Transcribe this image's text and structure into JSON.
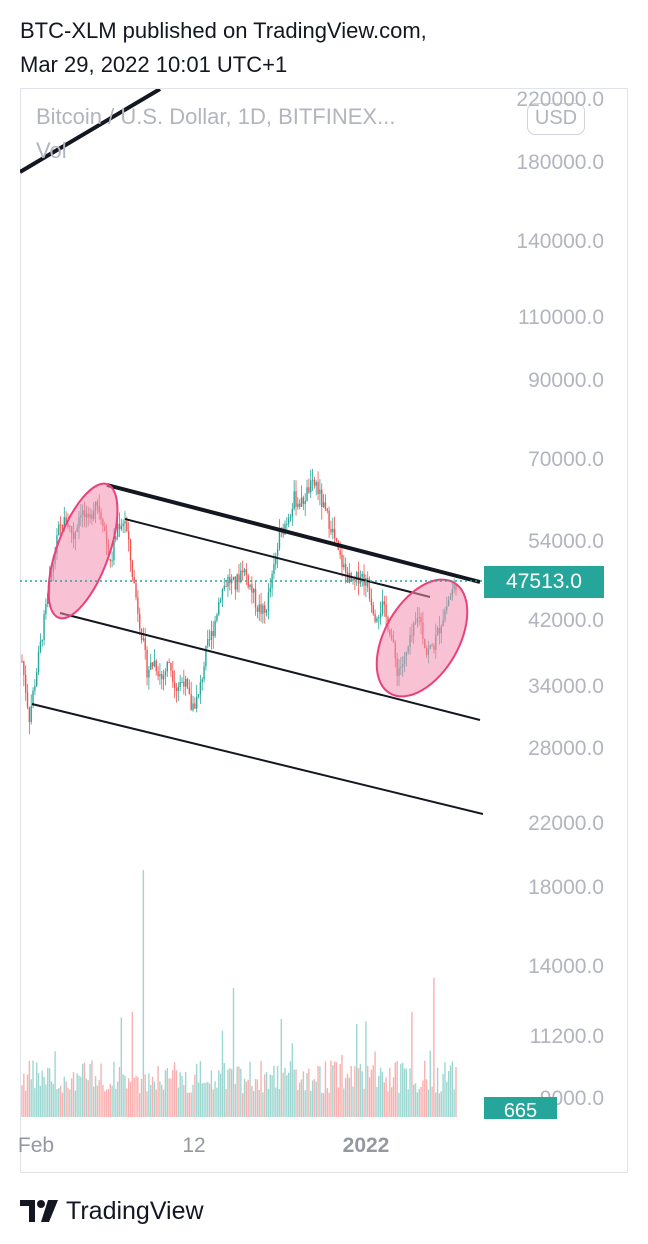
{
  "header": {
    "line1": "BTC-XLM published on TradingView.com,",
    "line2": "Mar 29, 2022 10:01 UTC+1"
  },
  "chart": {
    "symbol": "Bitcoin / U.S. Dollar, 1D, BITFINEX...",
    "volume_label": "Vol",
    "currency": "USD",
    "last_price": "47513.0",
    "last_volume": "665",
    "price_color": "#26a69a",
    "down_color": "#ef5350",
    "highlight_color": "#f48fb1"
  },
  "branding": {
    "logo_text": "TradingView"
  },
  "chart_data": {
    "type": "candlestick",
    "symbol": "Bitcoin / U.S. Dollar, 1D, BITFINEX",
    "scale": "log",
    "ylim": [
      20000,
      225000
    ],
    "y_ticks": [
      "220000.0",
      "180000.0",
      "140000.0",
      "110000.0",
      "90000.0",
      "70000.0",
      "54000.0",
      "42000.0",
      "34000.0",
      "28000.0",
      "22000.0"
    ],
    "volume_ticks": [
      "18000.0",
      "14000.0",
      "11200.0",
      "9000.0"
    ],
    "x_ticks": [
      "Feb",
      "12",
      "2022"
    ],
    "last_price": 47513.0,
    "last_volume": 665,
    "price_path": [
      {
        "x": 0,
        "y": 37000
      },
      {
        "x": 4,
        "y": 31000
      },
      {
        "x": 8,
        "y": 36000
      },
      {
        "x": 12,
        "y": 42000
      },
      {
        "x": 16,
        "y": 49000
      },
      {
        "x": 20,
        "y": 56000
      },
      {
        "x": 24,
        "y": 58000
      },
      {
        "x": 28,
        "y": 55000
      },
      {
        "x": 32,
        "y": 60000
      },
      {
        "x": 36,
        "y": 57000
      },
      {
        "x": 40,
        "y": 62000
      },
      {
        "x": 44,
        "y": 58000
      },
      {
        "x": 48,
        "y": 50000
      },
      {
        "x": 52,
        "y": 57000
      },
      {
        "x": 56,
        "y": 58000
      },
      {
        "x": 60,
        "y": 49000
      },
      {
        "x": 64,
        "y": 42000
      },
      {
        "x": 68,
        "y": 36000
      },
      {
        "x": 72,
        "y": 37000
      },
      {
        "x": 76,
        "y": 35000
      },
      {
        "x": 80,
        "y": 37000
      },
      {
        "x": 84,
        "y": 34000
      },
      {
        "x": 88,
        "y": 35000
      },
      {
        "x": 92,
        "y": 32000
      },
      {
        "x": 96,
        "y": 33000
      },
      {
        "x": 100,
        "y": 38000
      },
      {
        "x": 104,
        "y": 41000
      },
      {
        "x": 108,
        "y": 46000
      },
      {
        "x": 112,
        "y": 48000
      },
      {
        "x": 116,
        "y": 47000
      },
      {
        "x": 120,
        "y": 50000
      },
      {
        "x": 124,
        "y": 47000
      },
      {
        "x": 128,
        "y": 44000
      },
      {
        "x": 132,
        "y": 43000
      },
      {
        "x": 136,
        "y": 48000
      },
      {
        "x": 140,
        "y": 55000
      },
      {
        "x": 144,
        "y": 58000
      },
      {
        "x": 148,
        "y": 62000
      },
      {
        "x": 152,
        "y": 61000
      },
      {
        "x": 156,
        "y": 64000
      },
      {
        "x": 160,
        "y": 65000
      },
      {
        "x": 164,
        "y": 60000
      },
      {
        "x": 168,
        "y": 57000
      },
      {
        "x": 172,
        "y": 52000
      },
      {
        "x": 176,
        "y": 49000
      },
      {
        "x": 180,
        "y": 47000
      },
      {
        "x": 184,
        "y": 49000
      },
      {
        "x": 188,
        "y": 47000
      },
      {
        "x": 192,
        "y": 43000
      },
      {
        "x": 196,
        "y": 44000
      },
      {
        "x": 200,
        "y": 41000
      },
      {
        "x": 204,
        "y": 36000
      },
      {
        "x": 208,
        "y": 37000
      },
      {
        "x": 212,
        "y": 40000
      },
      {
        "x": 216,
        "y": 43000
      },
      {
        "x": 220,
        "y": 38000
      },
      {
        "x": 224,
        "y": 39000
      },
      {
        "x": 228,
        "y": 42000
      },
      {
        "x": 232,
        "y": 45000
      },
      {
        "x": 236,
        "y": 47513
      }
    ]
  }
}
